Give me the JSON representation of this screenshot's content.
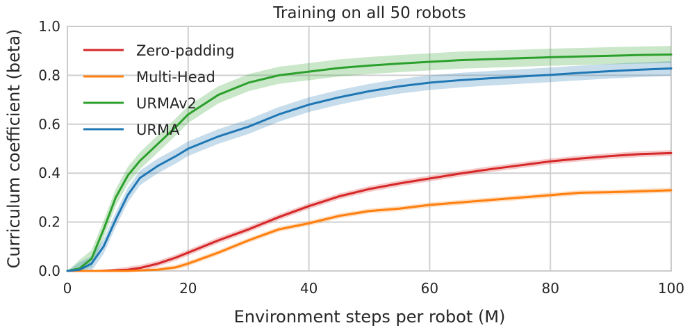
{
  "chart_data": {
    "type": "line",
    "title": "Training on all 50 robots",
    "xlabel": "Environment steps per robot (M)",
    "ylabel": "Curriculum coefficient (beta)",
    "xlim": [
      0,
      100
    ],
    "ylim": [
      0,
      1.0
    ],
    "xticks": [
      0,
      20,
      40,
      60,
      80,
      100
    ],
    "yticks": [
      0.0,
      0.2,
      0.4,
      0.6,
      0.8,
      1.0
    ],
    "xtick_labels": [
      "0",
      "20",
      "40",
      "60",
      "80",
      "100"
    ],
    "ytick_labels": [
      "0.0",
      "0.2",
      "0.4",
      "0.6",
      "0.8",
      "1.0"
    ],
    "grid": true,
    "legend_position": "top-left",
    "series": [
      {
        "name": "Zero-padding",
        "color": "#d62728",
        "x": [
          0,
          5,
          10,
          12,
          15,
          18,
          20,
          25,
          30,
          35,
          40,
          45,
          50,
          55,
          60,
          65,
          70,
          75,
          80,
          85,
          90,
          95,
          100
        ],
        "y": [
          0,
          0,
          0.005,
          0.012,
          0.03,
          0.055,
          0.075,
          0.125,
          0.17,
          0.22,
          0.265,
          0.305,
          0.335,
          0.358,
          0.378,
          0.398,
          0.416,
          0.432,
          0.448,
          0.46,
          0.47,
          0.478,
          0.482
        ],
        "band": 0.012
      },
      {
        "name": "Multi-Head",
        "color": "#ff7f0e",
        "x": [
          0,
          10,
          15,
          18,
          20,
          25,
          30,
          35,
          40,
          45,
          50,
          55,
          60,
          65,
          70,
          75,
          80,
          85,
          90,
          95,
          100
        ],
        "y": [
          0,
          0,
          0.005,
          0.015,
          0.03,
          0.075,
          0.125,
          0.17,
          0.195,
          0.225,
          0.245,
          0.255,
          0.27,
          0.28,
          0.29,
          0.3,
          0.31,
          0.32,
          0.322,
          0.326,
          0.33
        ],
        "band": 0.01
      },
      {
        "name": "URMAv2",
        "color": "#2ca02c",
        "x": [
          0,
          2,
          4,
          6,
          8,
          10,
          12,
          15,
          18,
          20,
          25,
          30,
          35,
          40,
          45,
          50,
          55,
          60,
          65,
          70,
          75,
          80,
          85,
          90,
          95,
          100
        ],
        "y": [
          0,
          0.01,
          0.05,
          0.17,
          0.3,
          0.39,
          0.45,
          0.52,
          0.59,
          0.64,
          0.72,
          0.77,
          0.8,
          0.815,
          0.83,
          0.84,
          0.848,
          0.855,
          0.862,
          0.866,
          0.87,
          0.874,
          0.877,
          0.88,
          0.883,
          0.885
        ],
        "band": 0.035
      },
      {
        "name": "URMA",
        "color": "#1f77b4",
        "x": [
          0,
          2,
          4,
          6,
          8,
          10,
          12,
          15,
          18,
          20,
          25,
          30,
          35,
          40,
          45,
          50,
          55,
          60,
          65,
          70,
          75,
          80,
          85,
          90,
          95,
          100
        ],
        "y": [
          0,
          0.005,
          0.03,
          0.1,
          0.21,
          0.31,
          0.38,
          0.43,
          0.47,
          0.5,
          0.55,
          0.59,
          0.64,
          0.68,
          0.71,
          0.735,
          0.755,
          0.77,
          0.78,
          0.788,
          0.795,
          0.802,
          0.81,
          0.817,
          0.823,
          0.828
        ],
        "band": 0.03
      }
    ]
  }
}
